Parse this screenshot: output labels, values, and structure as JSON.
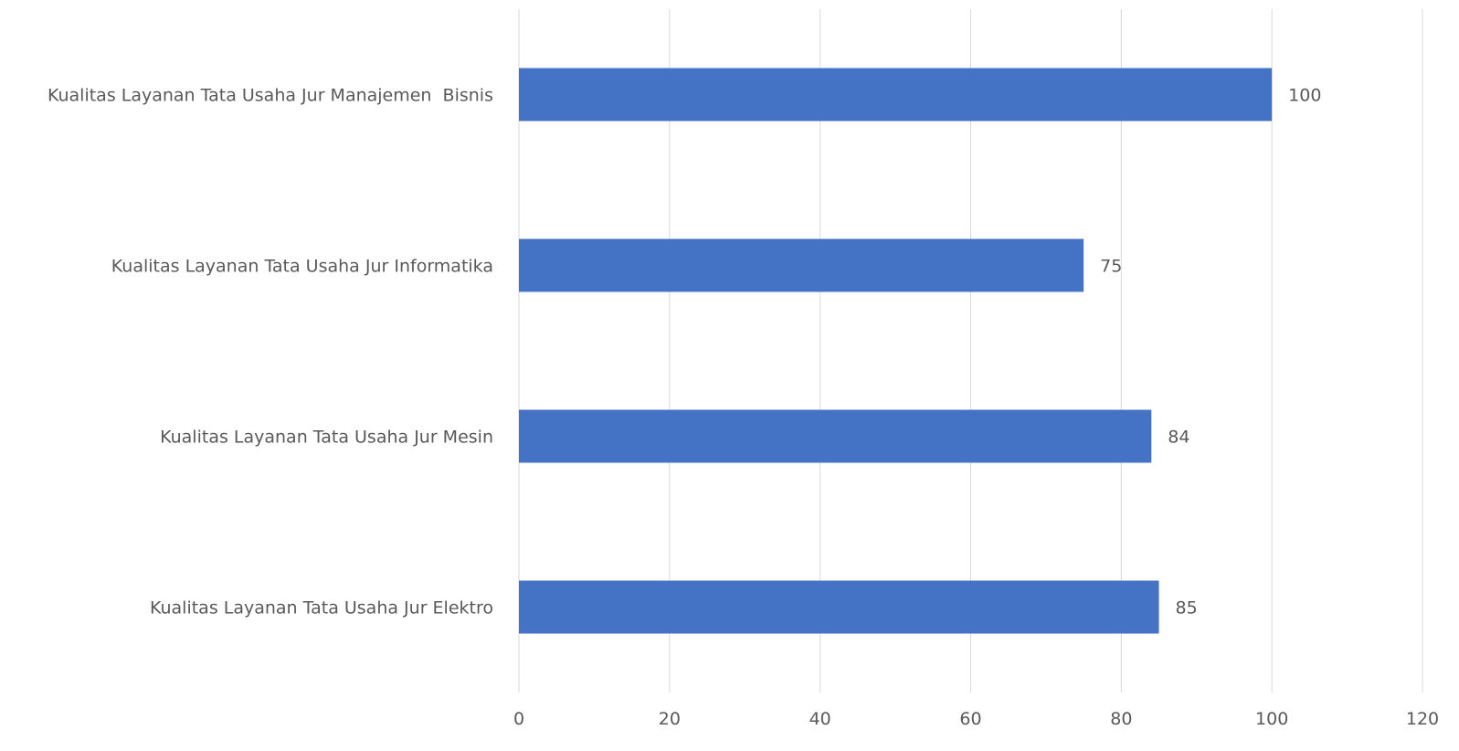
{
  "chart_data": {
    "type": "bar",
    "orientation": "horizontal",
    "categories": [
      "Kualitas Layanan Tata Usaha Jur Manajemen  Bisnis",
      "Kualitas Layanan Tata Usaha Jur Informatika",
      "Kualitas Layanan Tata Usaha Jur Mesin",
      "Kualitas Layanan Tata Usaha Jur Elektro"
    ],
    "values": [
      100,
      75,
      84,
      85
    ],
    "data_labels": [
      "100",
      "75",
      "84",
      "85"
    ],
    "title": "",
    "xlabel": "",
    "ylabel": "",
    "xlim": [
      0,
      120
    ],
    "x_ticks": [
      0,
      20,
      40,
      60,
      80,
      100,
      120
    ],
    "x_tick_labels": [
      "0",
      "20",
      "40",
      "60",
      "80",
      "100",
      "120"
    ],
    "grid": "vertical",
    "legend": "none",
    "bar_color": "#4472c4",
    "grid_color": "#d9d9d9",
    "text_color": "#595959"
  }
}
